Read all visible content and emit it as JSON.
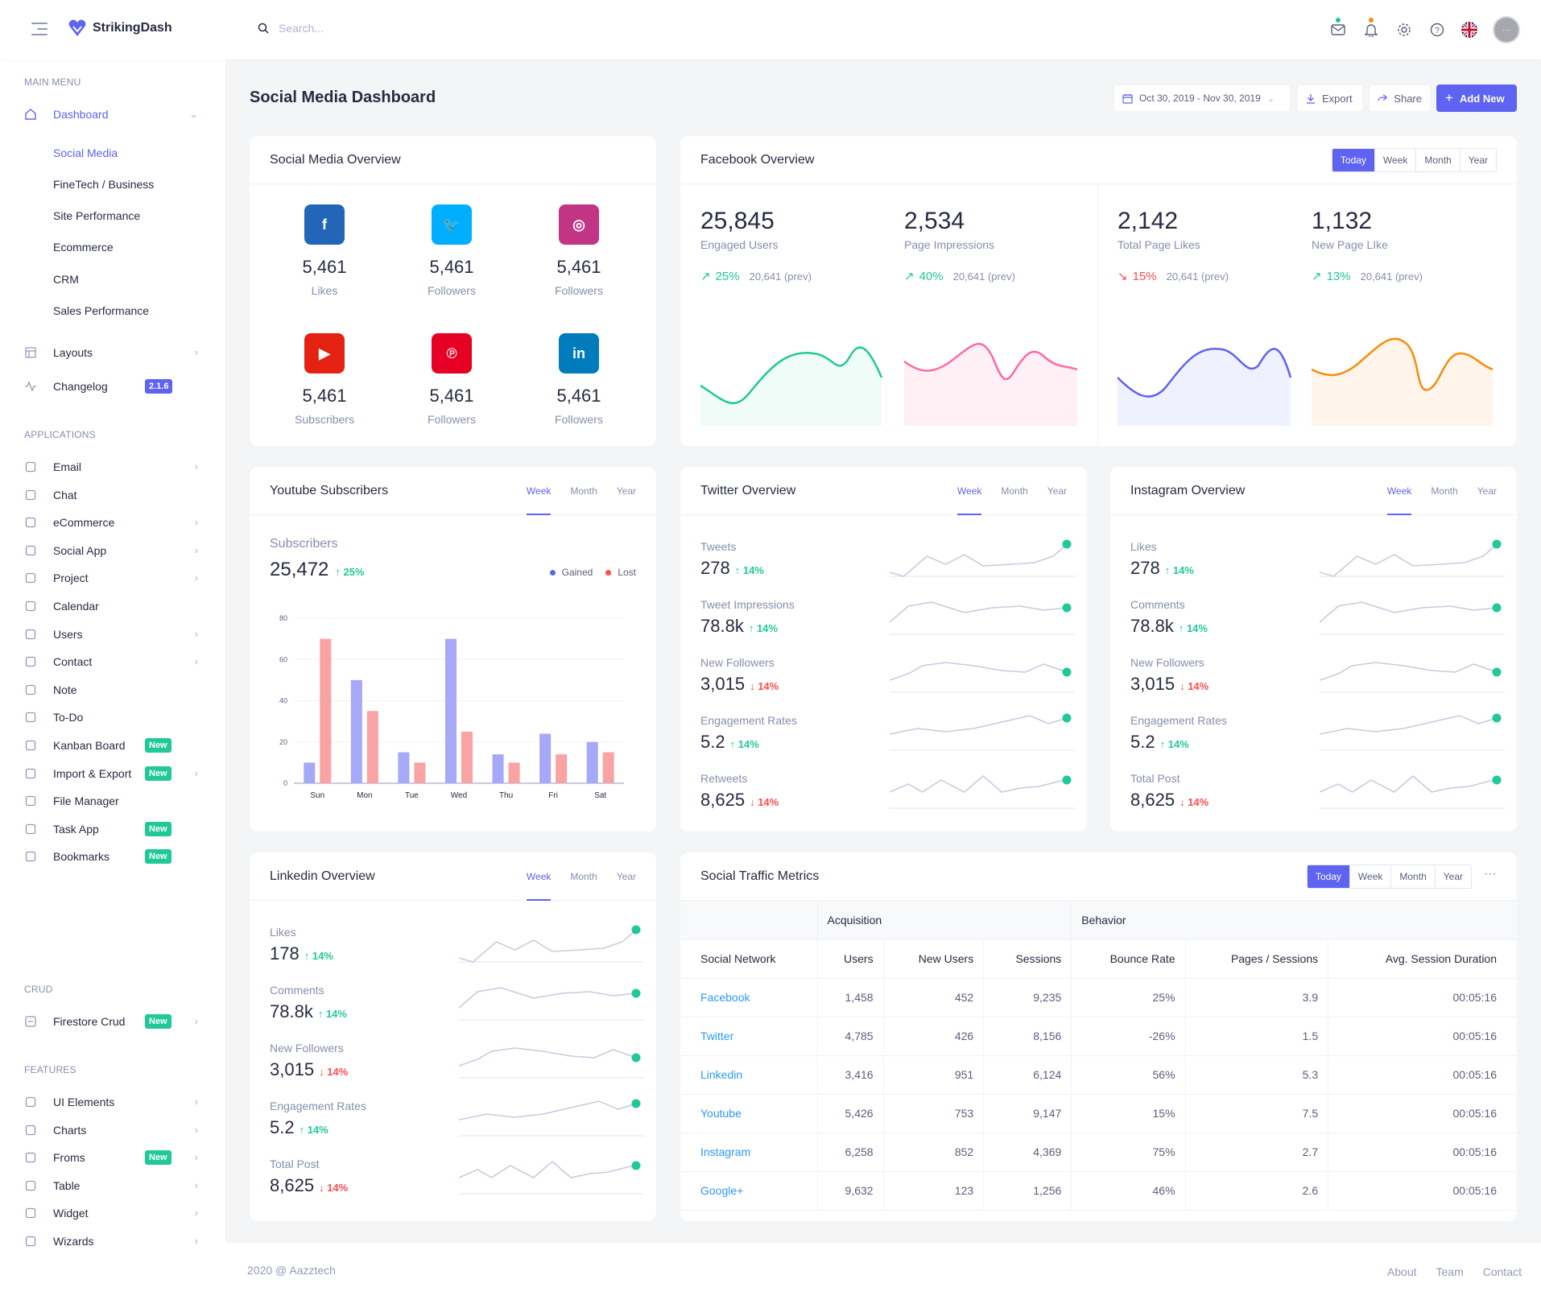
{
  "brand": {
    "name": "StrikingDash",
    "accent": "#5f63f2"
  },
  "search": {
    "placeholder": "Search..."
  },
  "sidebar": {
    "main_menu": "MAIN MENU",
    "dashboard": "Dashboard",
    "dashboard_subs": [
      "Social Media",
      "FineTech / Business",
      "Site Performance",
      "Ecommerce",
      "CRM",
      "Sales Performance"
    ],
    "layouts": "Layouts",
    "changelog": "Changelog",
    "changelog_badge": "2.1.6",
    "applications": "APPLICATIONS",
    "apps": [
      {
        "label": "Email",
        "icon": "mail-icon"
      },
      {
        "label": "Chat",
        "icon": "chat-icon"
      },
      {
        "label": "eCommerce",
        "icon": "cart-icon"
      },
      {
        "label": "Social App",
        "icon": "social-icon"
      },
      {
        "label": "Project",
        "icon": "target-icon"
      },
      {
        "label": "Calendar",
        "icon": "calendar-icon"
      },
      {
        "label": "Users",
        "icon": "folder-icon"
      },
      {
        "label": "Contact",
        "icon": "contact-icon"
      },
      {
        "label": "Note",
        "icon": "note-icon"
      },
      {
        "label": "To-Do",
        "icon": "check-square-icon"
      },
      {
        "label": "Kanban Board",
        "icon": "kanban-icon",
        "badge": "New"
      },
      {
        "label": "Import & Export",
        "icon": "repeat-icon",
        "badge": "New"
      },
      {
        "label": "File Manager",
        "icon": "file-icon"
      },
      {
        "label": "Task App",
        "icon": "clipboard-icon",
        "badge": "New"
      },
      {
        "label": "Bookmarks",
        "icon": "bookmark-icon",
        "badge": "New"
      }
    ],
    "crud": "CRUD",
    "firestore": "Firestore Crud",
    "firestore_badge": "New",
    "features": "FEATURES",
    "feats": [
      {
        "label": "UI Elements",
        "icon": "layers-icon"
      },
      {
        "label": "Charts",
        "icon": "bar-chart-icon"
      },
      {
        "label": "Froms",
        "icon": "disc-icon",
        "badge": "New"
      },
      {
        "label": "Table",
        "icon": "table-icon"
      },
      {
        "label": "Widget",
        "icon": "server-icon"
      },
      {
        "label": "Wizards",
        "icon": "square-icon"
      }
    ]
  },
  "header": {
    "title": "Social Media Dashboard",
    "date_range": "Oct 30, 2019 - Nov 30, 2019",
    "export": "Export",
    "share": "Share",
    "add_new": "Add New"
  },
  "social_overview": {
    "title": "Social Media Overview",
    "items": [
      {
        "value": "5,461",
        "label": "Likes",
        "color": "#2366b8",
        "glyph": "f"
      },
      {
        "value": "5,461",
        "label": "Followers",
        "color": "#00aeff",
        "glyph": "t"
      },
      {
        "value": "5,461",
        "label": "Followers",
        "color": "#c13584",
        "glyph": "ig"
      },
      {
        "value": "5,461",
        "label": "Subscribers",
        "color": "#e32212",
        "glyph": "yt"
      },
      {
        "value": "5,461",
        "label": "Followers",
        "color": "#e60023",
        "glyph": "p"
      },
      {
        "value": "5,461",
        "label": "Followers",
        "color": "#007cbc",
        "glyph": "in"
      }
    ]
  },
  "facebook": {
    "title": "Facebook Overview",
    "tabs": [
      "Today",
      "Week",
      "Month",
      "Year"
    ],
    "metrics": [
      {
        "value": "25,845",
        "label": "Engaged Users",
        "pct": "25%",
        "trend": "up",
        "prev": "20,641 (prev)",
        "color": "#20c997",
        "fill": "#effcf7"
      },
      {
        "value": "2,534",
        "label": "Page Impressions",
        "pct": "40%",
        "trend": "up",
        "prev": "20,641 (prev)",
        "color": "#ff69a5",
        "fill": "#fff0f6"
      },
      {
        "value": "2,142",
        "label": "Total Page Likes",
        "pct": "15%",
        "trend": "down",
        "prev": "20,641 (prev)",
        "color": "#5f63f2",
        "fill": "#f0f1ff"
      },
      {
        "value": "1,132",
        "label": "New Page LIke",
        "pct": "13%",
        "trend": "up",
        "prev": "20,641 (prev)",
        "color": "#fa8b0c",
        "fill": "#fff5eb"
      }
    ]
  },
  "youtube": {
    "title": "Youtube Subscribers",
    "tabs": [
      "Week",
      "Month",
      "Year"
    ],
    "sub_label": "Subscribers",
    "sub_value": "25,472",
    "sub_pct": "25%",
    "legend_gained": "Gained",
    "legend_lost": "Lost"
  },
  "chart_data": {
    "type": "bar",
    "categories": [
      "Sun",
      "Mon",
      "Tue",
      "Wed",
      "Thu",
      "Fri",
      "Sat"
    ],
    "series": [
      {
        "name": "Gained",
        "values": [
          10,
          50,
          15,
          70,
          14,
          24,
          20
        ],
        "color": "#a6a8f8"
      },
      {
        "name": "Lost",
        "values": [
          70,
          35,
          10,
          25,
          10,
          14,
          15
        ],
        "color": "#f9a3a4"
      }
    ],
    "yticks": [
      "0",
      "20",
      "40",
      "60",
      "80"
    ],
    "ylim": [
      0,
      80
    ]
  },
  "twitter": {
    "title": "Twitter Overview",
    "tabs": [
      "Week",
      "Month",
      "Year"
    ],
    "rows": [
      {
        "label": "Tweets",
        "value": "278",
        "pct": "14%",
        "trend": "up"
      },
      {
        "label": "Tweet Impressions",
        "value": "78.8k",
        "pct": "14%",
        "trend": "up"
      },
      {
        "label": "New Followers",
        "value": "3,015",
        "pct": "14%",
        "trend": "down"
      },
      {
        "label": "Engagement Rates",
        "value": "5.2",
        "pct": "14%",
        "trend": "up"
      },
      {
        "label": "Retweets",
        "value": "8,625",
        "pct": "14%",
        "trend": "down"
      }
    ]
  },
  "instagram": {
    "title": "Instagram Overview",
    "tabs": [
      "Week",
      "Month",
      "Year"
    ],
    "rows": [
      {
        "label": "Likes",
        "value": "278",
        "pct": "14%",
        "trend": "up"
      },
      {
        "label": "Comments",
        "value": "78.8k",
        "pct": "14%",
        "trend": "up"
      },
      {
        "label": "New Followers",
        "value": "3,015",
        "pct": "14%",
        "trend": "down"
      },
      {
        "label": "Engagement Rates",
        "value": "5.2",
        "pct": "14%",
        "trend": "up"
      },
      {
        "label": "Total Post",
        "value": "8,625",
        "pct": "14%",
        "trend": "down"
      }
    ]
  },
  "linkedin": {
    "title": "Linkedin Overview",
    "tabs": [
      "Week",
      "Month",
      "Year"
    ],
    "rows": [
      {
        "label": "Likes",
        "value": "178",
        "pct": "14%",
        "trend": "up"
      },
      {
        "label": "Comments",
        "value": "78.8k",
        "pct": "14%",
        "trend": "up"
      },
      {
        "label": "New Followers",
        "value": "3,015",
        "pct": "14%",
        "trend": "down"
      },
      {
        "label": "Engagement Rates",
        "value": "5.2",
        "pct": "14%",
        "trend": "up"
      },
      {
        "label": "Total Post",
        "value": "8,625",
        "pct": "14%",
        "trend": "down"
      }
    ]
  },
  "traffic": {
    "title": "Social Traffic Metrics",
    "tabs": [
      "Today",
      "Week",
      "Month",
      "Year"
    ],
    "group_acq": "Acquisition",
    "group_beh": "Behavior",
    "columns": [
      "Social Network",
      "Users",
      "New Users",
      "Sessions",
      "Bounce Rate",
      "Pages / Sessions",
      "Avg. Session Duration"
    ],
    "rows": [
      [
        "Facebook",
        "1,458",
        "452",
        "9,235",
        "25%",
        "3.9",
        "00:05:16"
      ],
      [
        "Twitter",
        "4,785",
        "426",
        "8,156",
        "-26%",
        "1.5",
        "00:05:16"
      ],
      [
        "Linkedin",
        "3,416",
        "951",
        "6,124",
        "56%",
        "5.3",
        "00:05:16"
      ],
      [
        "Youtube",
        "5,426",
        "753",
        "9,147",
        "15%",
        "7.5",
        "00:05:16"
      ],
      [
        "Instagram",
        "6,258",
        "852",
        "4,369",
        "75%",
        "2.7",
        "00:05:16"
      ],
      [
        "Google+",
        "9,632",
        "123",
        "1,256",
        "46%",
        "2.6",
        "00:05:16"
      ]
    ]
  },
  "footer": {
    "copyright": "2020 @ Aazztech",
    "links": [
      "About",
      "Team",
      "Contact"
    ]
  }
}
